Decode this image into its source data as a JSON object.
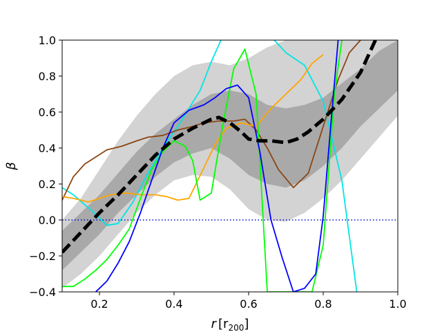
{
  "chart_data": {
    "type": "line",
    "title": "",
    "xlabel_main": "r",
    "xlabel_unit": "[r",
    "xlabel_sub": "200",
    "xlabel_close": "]",
    "ylabel": "β",
    "xlim": [
      0.1,
      1.0
    ],
    "ylim": [
      -0.4,
      1.0
    ],
    "x_ticks": [
      0.2,
      0.4,
      0.6,
      0.8,
      1.0
    ],
    "x_tick_labels": [
      "0.2",
      "0.4",
      "0.6",
      "0.8",
      "1.0"
    ],
    "y_ticks": [
      -0.4,
      -0.2,
      0.0,
      0.2,
      0.4,
      0.6,
      0.8,
      1.0
    ],
    "y_tick_labels": [
      "−0.4",
      "−0.2",
      "0.0",
      "0.2",
      "0.4",
      "0.6",
      "0.8",
      "1.0"
    ],
    "reference_line": {
      "y": 0.0,
      "color": "#0000cc",
      "style": "dotted"
    },
    "bands": [
      {
        "name": "outer-band",
        "color": "#d3d3d3",
        "x": [
          0.1,
          0.15,
          0.2,
          0.25,
          0.3,
          0.35,
          0.4,
          0.45,
          0.5,
          0.55,
          0.6,
          0.65,
          0.7,
          0.75,
          0.8,
          0.85,
          0.9,
          0.95,
          1.0
        ],
        "lower": [
          -0.38,
          -0.3,
          -0.2,
          -0.08,
          0.04,
          0.14,
          0.22,
          0.25,
          0.24,
          0.17,
          0.06,
          0.0,
          -0.01,
          0.04,
          0.12,
          0.22,
          0.34,
          0.46,
          0.58
        ],
        "upper": [
          0.0,
          0.12,
          0.28,
          0.44,
          0.58,
          0.7,
          0.8,
          0.86,
          0.88,
          0.86,
          0.9,
          0.96,
          1.0,
          1.0,
          1.0,
          1.0,
          1.0,
          1.0,
          1.0
        ]
      },
      {
        "name": "inner-band",
        "color": "#a9a9a9",
        "x": [
          0.1,
          0.15,
          0.2,
          0.25,
          0.3,
          0.35,
          0.4,
          0.45,
          0.5,
          0.55,
          0.6,
          0.65,
          0.7,
          0.75,
          0.8,
          0.85,
          0.9,
          0.95,
          1.0
        ],
        "lower": [
          -0.28,
          -0.18,
          -0.08,
          0.04,
          0.14,
          0.24,
          0.32,
          0.37,
          0.4,
          0.34,
          0.25,
          0.2,
          0.18,
          0.22,
          0.3,
          0.4,
          0.52,
          0.62,
          0.72
        ],
        "upper": [
          -0.06,
          0.04,
          0.14,
          0.26,
          0.38,
          0.48,
          0.56,
          0.64,
          0.7,
          0.72,
          0.7,
          0.64,
          0.62,
          0.64,
          0.68,
          0.76,
          0.84,
          0.94,
          1.0
        ]
      }
    ],
    "series": [
      {
        "name": "mean",
        "color": "#000000",
        "dashed": true,
        "x": [
          0.1,
          0.15,
          0.2,
          0.25,
          0.3,
          0.35,
          0.4,
          0.45,
          0.5,
          0.52,
          0.55,
          0.58,
          0.6,
          0.63,
          0.66,
          0.7,
          0.73,
          0.76,
          0.8,
          0.85,
          0.9,
          0.94
        ],
        "y": [
          -0.18,
          -0.07,
          0.04,
          0.14,
          0.25,
          0.36,
          0.45,
          0.51,
          0.56,
          0.57,
          0.54,
          0.49,
          0.45,
          0.44,
          0.44,
          0.43,
          0.45,
          0.49,
          0.56,
          0.67,
          0.82,
          1.0
        ]
      },
      {
        "name": "cyan",
        "color": "#00e5e5",
        "x": [
          0.1,
          0.13,
          0.18,
          0.22,
          0.25,
          0.29,
          0.33,
          0.37,
          0.41,
          0.44,
          0.47,
          0.5,
          0.53,
          0.6,
          0.66,
          0.7,
          0.75,
          0.8,
          0.85,
          0.89
        ],
        "y": [
          0.18,
          0.14,
          0.05,
          -0.03,
          -0.02,
          0.1,
          0.26,
          0.4,
          0.52,
          0.62,
          0.72,
          0.88,
          1.02,
          1.03,
          1.02,
          0.93,
          0.86,
          0.66,
          0.22,
          -0.4
        ]
      },
      {
        "name": "brown",
        "color": "#8b4513",
        "x": [
          0.1,
          0.13,
          0.16,
          0.19,
          0.22,
          0.26,
          0.3,
          0.33,
          0.37,
          0.41,
          0.45,
          0.48,
          0.52,
          0.56,
          0.59,
          0.62,
          0.65,
          0.68,
          0.72,
          0.76,
          0.8,
          0.84,
          0.87,
          0.9
        ],
        "y": [
          0.11,
          0.24,
          0.31,
          0.35,
          0.39,
          0.41,
          0.44,
          0.46,
          0.47,
          0.5,
          0.52,
          0.54,
          0.55,
          0.55,
          0.56,
          0.5,
          0.4,
          0.28,
          0.18,
          0.26,
          0.52,
          0.78,
          0.93,
          1.0
        ]
      },
      {
        "name": "orange",
        "color": "#ffa500",
        "x": [
          0.1,
          0.13,
          0.17,
          0.2,
          0.23,
          0.27,
          0.31,
          0.35,
          0.38,
          0.41,
          0.44,
          0.48,
          0.51,
          0.54,
          0.58,
          0.62,
          0.66,
          0.7,
          0.74,
          0.77,
          0.8
        ],
        "y": [
          0.13,
          0.12,
          0.1,
          0.12,
          0.14,
          0.15,
          0.14,
          0.14,
          0.13,
          0.11,
          0.12,
          0.29,
          0.42,
          0.51,
          0.54,
          0.52,
          0.62,
          0.7,
          0.78,
          0.87,
          0.92
        ]
      },
      {
        "name": "green",
        "color": "#00ff00",
        "x": [
          0.1,
          0.13,
          0.16,
          0.19,
          0.22,
          0.25,
          0.28,
          0.31,
          0.34,
          0.37,
          0.4,
          0.43,
          0.45,
          0.47,
          0.5,
          0.53,
          0.56,
          0.59,
          0.62,
          0.65,
          0.68,
          0.71,
          0.74,
          0.77,
          0.8,
          0.83,
          0.85
        ],
        "y": [
          -0.37,
          -0.37,
          -0.33,
          -0.28,
          -0.22,
          -0.14,
          -0.05,
          0.12,
          0.28,
          0.38,
          0.44,
          0.41,
          0.33,
          0.11,
          0.15,
          0.52,
          0.84,
          0.95,
          0.7,
          -0.4,
          -0.4,
          -0.4,
          -0.4,
          -0.4,
          -0.14,
          0.7,
          1.0
        ]
      },
      {
        "name": "blue",
        "color": "#0000ff",
        "x": [
          0.19,
          0.22,
          0.25,
          0.28,
          0.31,
          0.34,
          0.37,
          0.4,
          0.44,
          0.48,
          0.51,
          0.54,
          0.57,
          0.6,
          0.63,
          0.66,
          0.69,
          0.72,
          0.75,
          0.78,
          0.8,
          0.82,
          0.84
        ],
        "y": [
          -0.4,
          -0.34,
          -0.24,
          -0.12,
          0.04,
          0.22,
          0.4,
          0.54,
          0.61,
          0.64,
          0.68,
          0.73,
          0.75,
          0.68,
          0.38,
          0.0,
          -0.21,
          -0.4,
          -0.38,
          -0.3,
          0.02,
          0.52,
          1.0
        ]
      }
    ]
  }
}
